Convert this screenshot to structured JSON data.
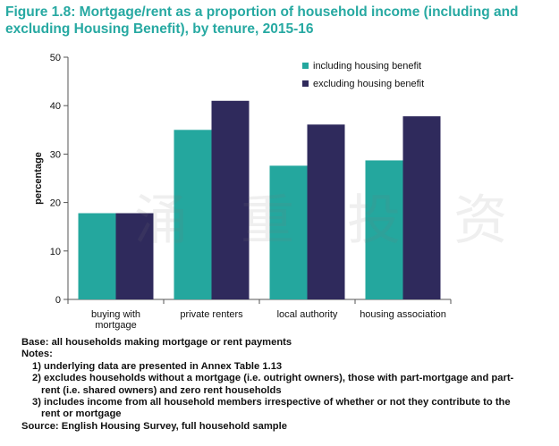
{
  "title": "Figure 1.8: Mortgage/rent as a proportion of household income (including and excluding Housing Benefit), by tenure, 2015-16",
  "watermark": "涌 重 投 资",
  "colors": {
    "title": "#27a9a2",
    "including": "#24a79e",
    "excluding": "#2f2a5c"
  },
  "chart_data": {
    "type": "bar",
    "categories": [
      [
        "buying with",
        "mortgage"
      ],
      [
        "private renters"
      ],
      [
        "local authority"
      ],
      [
        "housing association"
      ]
    ],
    "series": [
      {
        "name": "including housing benefit",
        "values": [
          17.8,
          35,
          27.6,
          28.7
        ]
      },
      {
        "name": "excluding housing benefit",
        "values": [
          17.8,
          41,
          36.1,
          37.8
        ]
      }
    ],
    "ylabel": "percentage",
    "ylim": [
      0,
      50
    ],
    "yticks": [
      0,
      10,
      20,
      30,
      40,
      50
    ],
    "grid": false,
    "legend": "top-right"
  },
  "notes": {
    "base": "Base: all households making mortgage or rent payments",
    "heading": "Notes:",
    "n1": "1) underlying data are presented in Annex Table 1.13",
    "n2a": "2) excludes households without a mortgage (i.e. outright owners), those with part-mortgage and part-",
    "n2b": "rent (i.e. shared owners) and zero rent households",
    "n3a": "3) includes income from all household members irrespective of whether or not they contribute to the",
    "n3b": "rent or mortgage",
    "source": "Source: English Housing Survey, full household sample"
  }
}
